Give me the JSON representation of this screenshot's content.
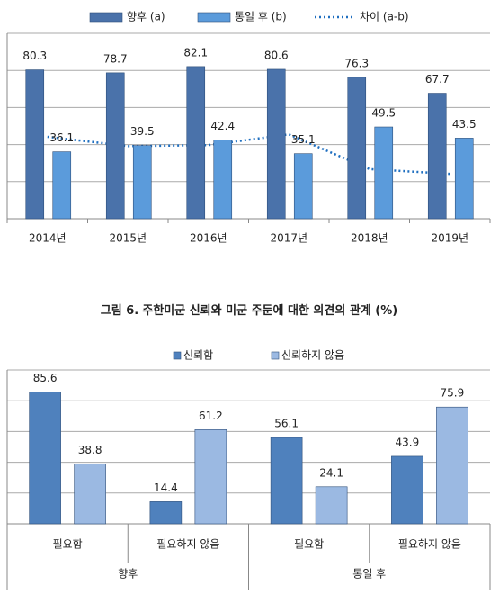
{
  "chart_data": [
    {
      "type": "bar",
      "categories": [
        "2014년",
        "2015년",
        "2016년",
        "2017년",
        "2018년",
        "2019년"
      ],
      "series": [
        {
          "name": "향후 (a)",
          "color": "#4a72aa",
          "values": [
            80.3,
            78.7,
            82.1,
            80.6,
            76.3,
            67.7
          ]
        },
        {
          "name": "통일 후 (b)",
          "color": "#5b9bdb",
          "values": [
            36.1,
            39.5,
            42.4,
            35.1,
            49.5,
            43.5
          ]
        },
        {
          "name": "차이 (a-b)",
          "type": "line",
          "style": "dotted",
          "color": "#1f6fc0",
          "values": [
            44.2,
            39.2,
            39.7,
            45.5,
            26.8,
            24.2
          ]
        }
      ],
      "ylim": [
        0,
        100
      ],
      "yticks": [
        0,
        20,
        40,
        60,
        80,
        100
      ],
      "grid": true,
      "legend": "top"
    },
    {
      "type": "bar",
      "figure_label": "그림 6.",
      "title": "주한미군 신뢰와 미군 주둔에 대한 의견의 관계 (%)",
      "categories": [
        "필요함",
        "필요하지 않음",
        "필요함",
        "필요하지 않음"
      ],
      "groups": [
        "향후",
        "통일 후"
      ],
      "series": [
        {
          "name": "신뢰함",
          "color": "#4f81bd",
          "values": [
            85.6,
            14.4,
            56.1,
            43.9
          ]
        },
        {
          "name": "신뢰하지 않음",
          "color": "#9bb9e2",
          "values": [
            38.8,
            61.2,
            24.1,
            75.9
          ]
        }
      ],
      "ylim": [
        0,
        100
      ],
      "yticks": [
        0,
        20,
        40,
        60,
        80,
        100
      ],
      "grid": true,
      "legend": "top"
    }
  ]
}
